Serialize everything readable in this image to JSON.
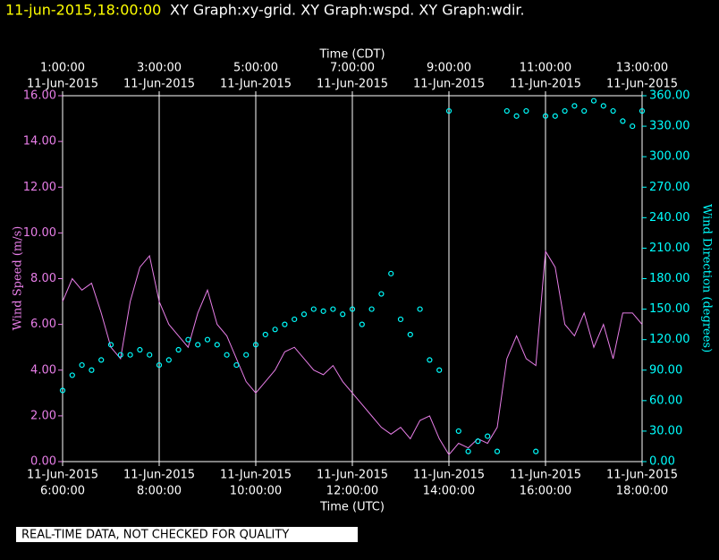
{
  "chart_data": {
    "type": "line",
    "title": "11-jun-2015,18:00:00",
    "subtitle": "XY Graph:xy-grid.  XY Graph:wspd.  XY Graph:wdir.",
    "x_label": "Time (UTC)",
    "x2_label": "Time (CDT)",
    "y_label": "Wind Speed (m/s)",
    "y2_label": "Wind Direction (degrees)",
    "footer": "REAL-TIME DATA, NOT CHECKED FOR QUALITY",
    "xlim": [
      6,
      18
    ],
    "xticks": [
      {
        "value": 6,
        "label": "6:00:00"
      },
      {
        "value": 8,
        "label": "8:00:00"
      },
      {
        "value": 10,
        "label": "10:00:00"
      },
      {
        "value": 12,
        "label": "12:00:00"
      },
      {
        "value": 14,
        "label": "14:00:00"
      },
      {
        "value": 16,
        "label": "16:00:00"
      },
      {
        "value": 18,
        "label": "18:00:00"
      }
    ],
    "x2ticks": [
      {
        "value": 6,
        "label": "1:00:00"
      },
      {
        "value": 8,
        "label": "3:00:00"
      },
      {
        "value": 10,
        "label": "5:00:00"
      },
      {
        "value": 12,
        "label": "7:00:00"
      },
      {
        "value": 14,
        "label": "9:00:00"
      },
      {
        "value": 16,
        "label": "11:00:00"
      },
      {
        "value": 18,
        "label": "13:00:00"
      }
    ],
    "x_tick_date": "11-Jun-2015",
    "grid": "x",
    "ylim": [
      0,
      16
    ],
    "yticks": [
      {
        "value": 0,
        "label": "0.00"
      },
      {
        "value": 2,
        "label": "2.00"
      },
      {
        "value": 4,
        "label": "4.00"
      },
      {
        "value": 6,
        "label": "6.00"
      },
      {
        "value": 8,
        "label": "8.00"
      },
      {
        "value": 10,
        "label": "10.00"
      },
      {
        "value": 12,
        "label": "12.00"
      },
      {
        "value": 14,
        "label": "14.00"
      },
      {
        "value": 16,
        "label": "16.00"
      }
    ],
    "y2lim": [
      0,
      360
    ],
    "y2ticks": [
      {
        "value": 0,
        "label": "0.00"
      },
      {
        "value": 30,
        "label": "30.00"
      },
      {
        "value": 60,
        "label": "60.00"
      },
      {
        "value": 90,
        "label": "90.00"
      },
      {
        "value": 120,
        "label": "120.00"
      },
      {
        "value": 150,
        "label": "150.00"
      },
      {
        "value": 180,
        "label": "180.00"
      },
      {
        "value": 210,
        "label": "210.00"
      },
      {
        "value": 240,
        "label": "240.00"
      },
      {
        "value": 270,
        "label": "270.00"
      },
      {
        "value": 300,
        "label": "300.00"
      },
      {
        "value": 330,
        "label": "330.00"
      },
      {
        "value": 360,
        "label": "360.00"
      }
    ],
    "x": [
      6.0,
      6.2,
      6.4,
      6.6,
      6.8,
      7.0,
      7.2,
      7.4,
      7.6,
      7.8,
      8.0,
      8.2,
      8.4,
      8.6,
      8.8,
      9.0,
      9.2,
      9.4,
      9.6,
      9.8,
      10.0,
      10.2,
      10.4,
      10.6,
      10.8,
      11.0,
      11.2,
      11.4,
      11.6,
      11.8,
      12.0,
      12.2,
      12.4,
      12.6,
      12.8,
      13.0,
      13.2,
      13.4,
      13.6,
      13.8,
      14.0,
      14.2,
      14.4,
      14.6,
      14.8,
      15.0,
      15.2,
      15.4,
      15.6,
      15.8,
      16.0,
      16.2,
      16.4,
      16.6,
      16.8,
      17.0,
      17.2,
      17.4,
      17.6,
      17.8,
      18.0
    ],
    "series": [
      {
        "name": "wspd",
        "color": "#e87ee8",
        "style": "line",
        "values": [
          7.0,
          8.0,
          7.5,
          7.8,
          6.5,
          5.0,
          4.5,
          7.0,
          8.5,
          9.0,
          7.0,
          6.0,
          5.5,
          5.0,
          6.5,
          7.5,
          6.0,
          5.5,
          4.5,
          3.5,
          3.0,
          3.5,
          4.0,
          4.8,
          5.0,
          4.5,
          4.0,
          3.8,
          4.2,
          3.5,
          3.0,
          2.5,
          2.0,
          1.5,
          1.2,
          1.5,
          1.0,
          1.8,
          2.0,
          1.0,
          0.3,
          0.8,
          0.6,
          1.0,
          0.8,
          1.5,
          4.5,
          5.5,
          4.5,
          4.2,
          9.2,
          8.5,
          6.0,
          5.5,
          6.5,
          5.0,
          6.0,
          4.5,
          6.5,
          6.5,
          6.0
        ]
      },
      {
        "name": "wdir",
        "color": "#00ffff",
        "style": "circles",
        "axis": "y2",
        "values": [
          70,
          85,
          95,
          90,
          100,
          115,
          105,
          105,
          110,
          105,
          95,
          100,
          110,
          120,
          115,
          120,
          115,
          105,
          95,
          105,
          115,
          125,
          130,
          135,
          140,
          145,
          150,
          148,
          150,
          145,
          150,
          135,
          150,
          165,
          185,
          140,
          125,
          150,
          100,
          90,
          345,
          30,
          10,
          20,
          25,
          10,
          345,
          340,
          345,
          10,
          340,
          340,
          345,
          350,
          345,
          355,
          350,
          345,
          335,
          330,
          345
        ]
      }
    ]
  }
}
